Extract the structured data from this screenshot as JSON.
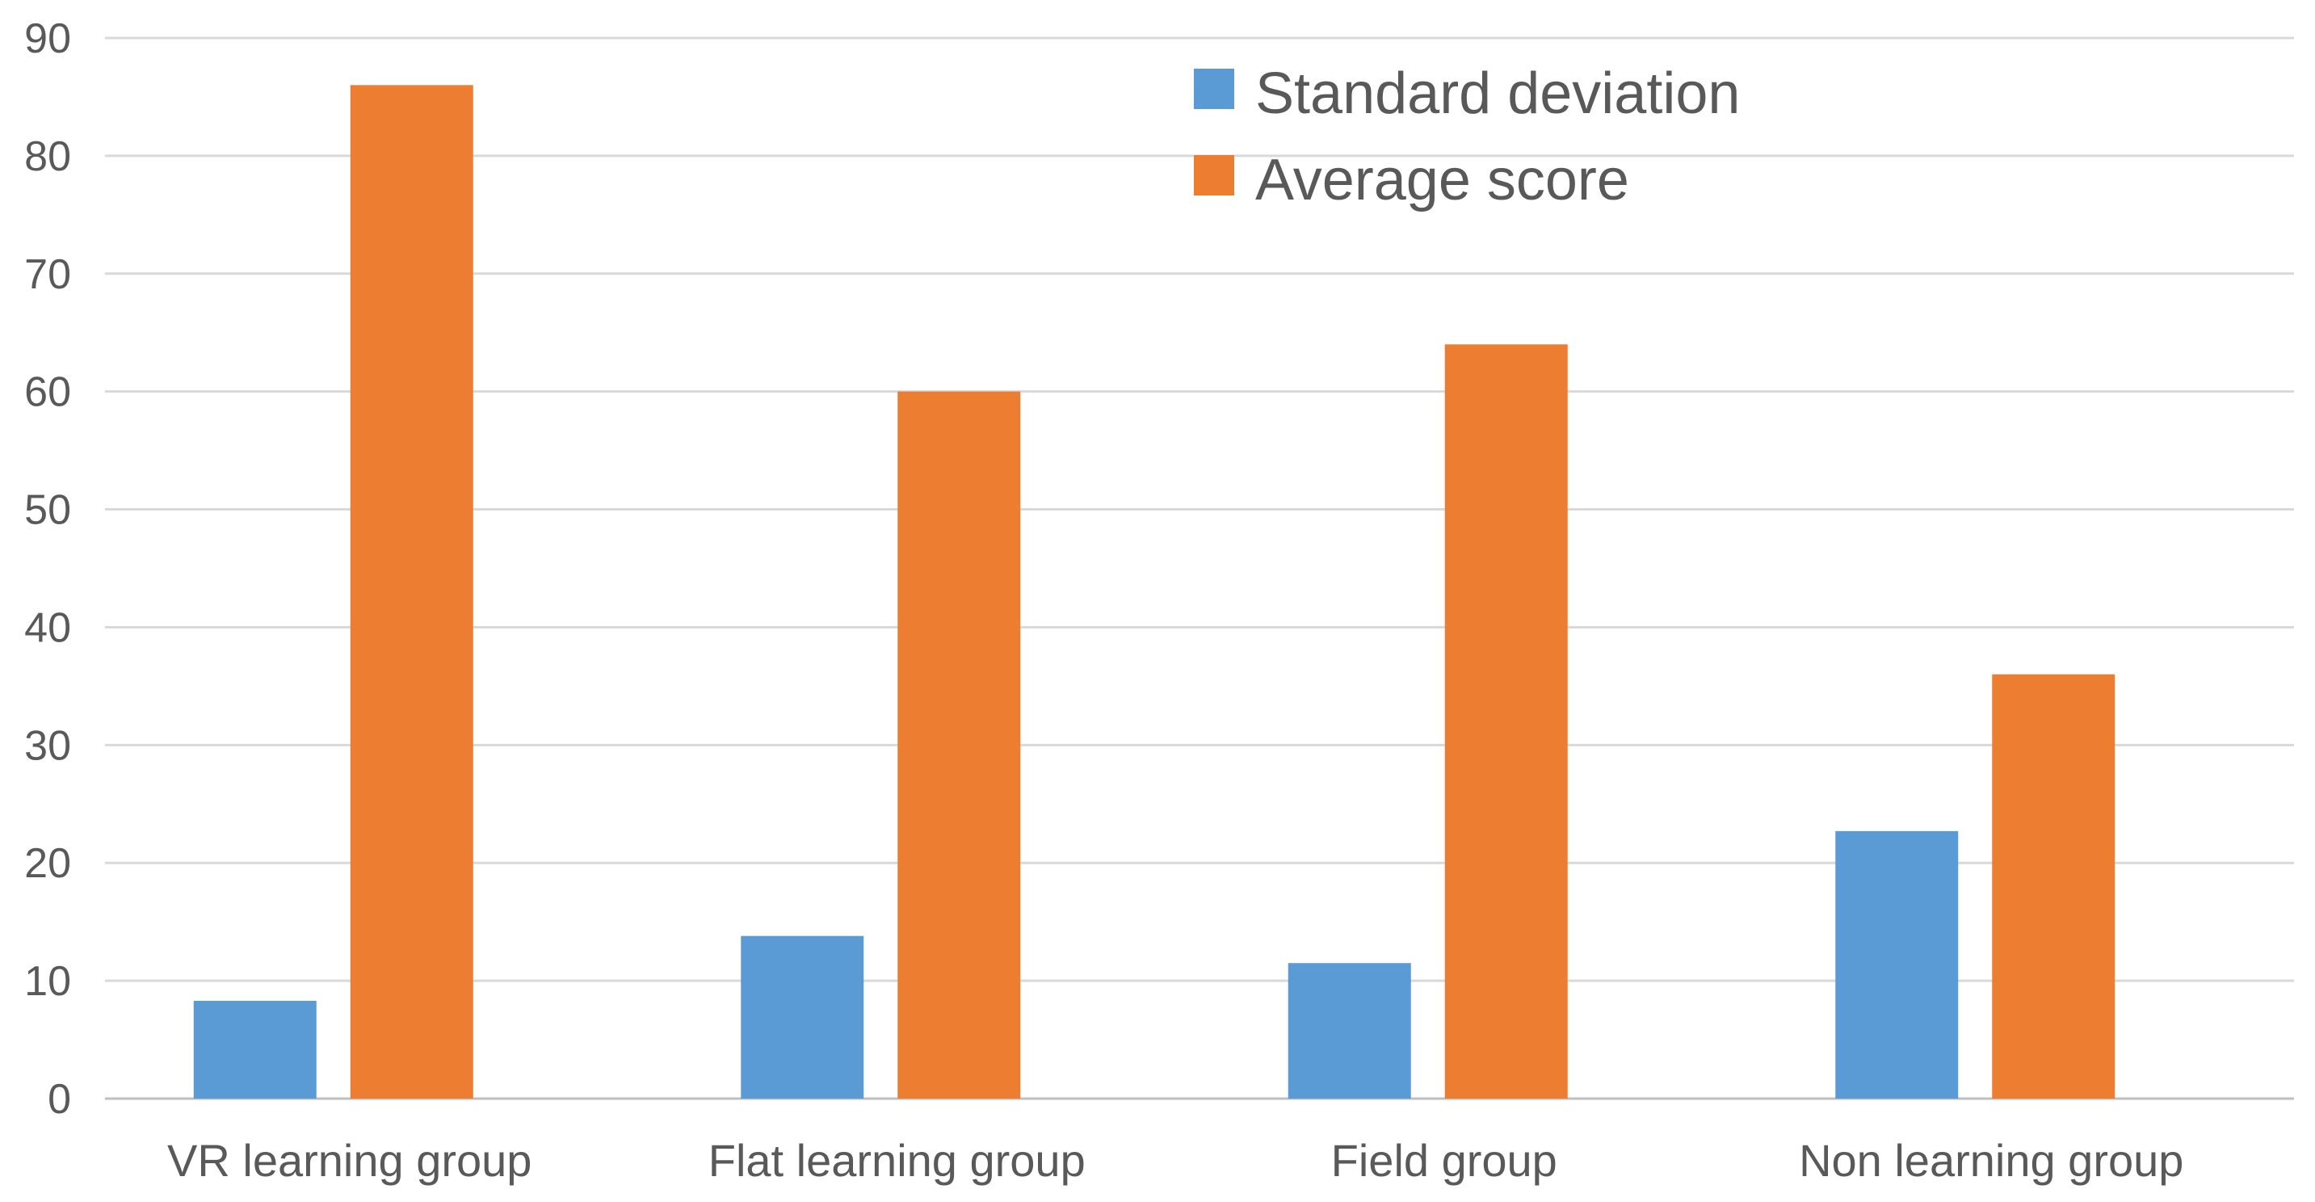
{
  "colors": {
    "standard_deviation": "#5b9bd5",
    "average_score": "#ed7d31"
  },
  "chart_data": {
    "type": "bar",
    "title": "",
    "xlabel": "",
    "ylabel": "",
    "ylim": [
      0,
      90
    ],
    "yticks": [
      0,
      10,
      20,
      30,
      40,
      50,
      60,
      70,
      80,
      90
    ],
    "grid": true,
    "legend_position": "top-center",
    "categories": [
      "VR learning group",
      "Flat learning group",
      "Field group",
      "Non learning group"
    ],
    "series": [
      {
        "name": "Standard deviation",
        "values": [
          8.3,
          13.8,
          11.5,
          22.7
        ]
      },
      {
        "name": "Average score",
        "values": [
          86,
          60,
          64,
          36
        ]
      }
    ]
  }
}
